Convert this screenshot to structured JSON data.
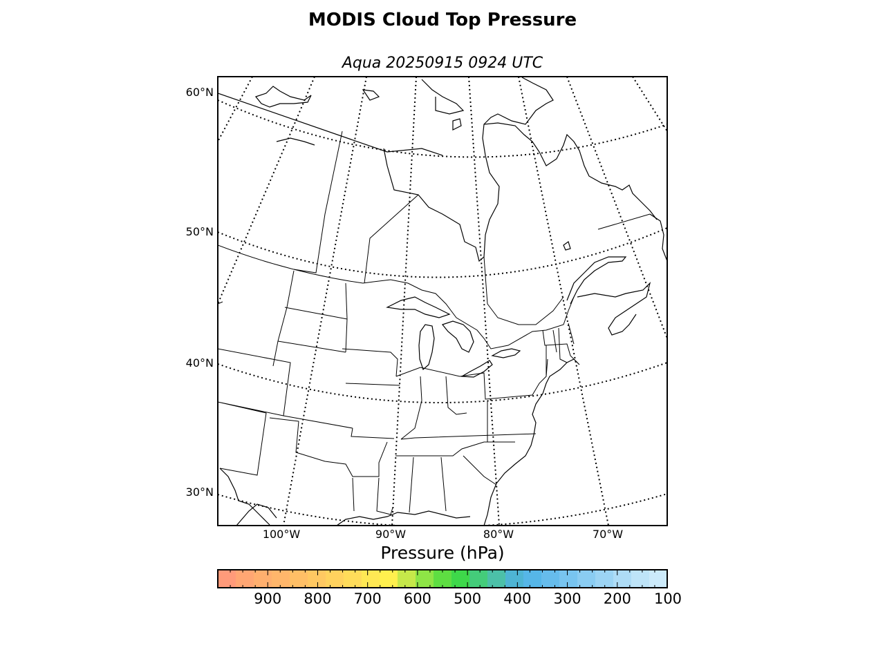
{
  "title": "MODIS Cloud Top Pressure",
  "subtitle": "Aqua 20250915 0924 UTC",
  "map": {
    "projection": "lambert-conformal",
    "lat_labels": [
      "60°N",
      "50°N",
      "40°N",
      "30°N"
    ],
    "lon_labels": [
      "100°W",
      "90°W",
      "80°W",
      "70°W"
    ],
    "graticule": "dotted",
    "region": "eastern North America"
  },
  "colorbar": {
    "label": "Pressure (hPa)",
    "range": [
      1000,
      100
    ],
    "ticks": [
      "900",
      "800",
      "700",
      "600",
      "500",
      "400",
      "300",
      "200",
      "100"
    ],
    "colors": [
      "#ff9a7a",
      "#ffa673",
      "#ffaf6e",
      "#ffb66b",
      "#ffbf66",
      "#ffc862",
      "#ffd25e",
      "#ffdc5a",
      "#ffe854",
      "#fff04e",
      "#c6e84a",
      "#8ee446",
      "#5ede42",
      "#3ed84a",
      "#44cc7a",
      "#4cc0a8",
      "#4eb4d4",
      "#56b6e8",
      "#66bcec",
      "#78c4f0",
      "#8accf2",
      "#9cd4f4",
      "#aedcf6",
      "#bee4f8",
      "#cceafa"
    ]
  }
}
